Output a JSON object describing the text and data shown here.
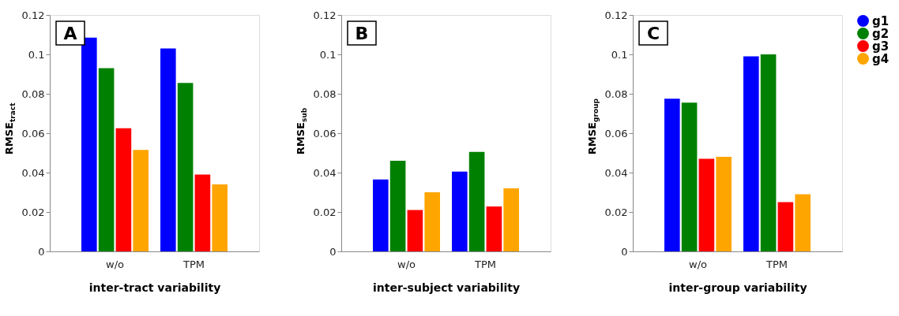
{
  "chart_data": [
    {
      "type": "bar",
      "categories": [
        "w/o",
        "TPM"
      ],
      "xlabel": "inter-tract variability",
      "ylabel": "RMSE$_{tract}$",
      "ylim": [
        0,
        0.12
      ],
      "yticks": [
        0,
        0.02,
        0.04,
        0.06,
        0.08,
        0.1,
        0.12
      ],
      "grid": false,
      "legend": "top right",
      "annotations": [
        "A"
      ],
      "series": [
        {
          "name": "g1",
          "color": "#0000ff",
          "values": [
            0.1085,
            0.103
          ]
        },
        {
          "name": "g2",
          "color": "#008000",
          "values": [
            0.093,
            0.0855
          ]
        },
        {
          "name": "g3",
          "color": "#ff0000",
          "values": [
            0.0625,
            0.039
          ]
        },
        {
          "name": "g4",
          "color": "#ffa500",
          "values": [
            0.0515,
            0.034
          ]
        }
      ]
    },
    {
      "type": "bar",
      "categories": [
        "w/o",
        "TPM"
      ],
      "xlabel": "inter-subject variability",
      "ylabel": "RMSE$_{sub}$",
      "ylim": [
        0,
        0.12
      ],
      "yticks": [
        0,
        0.02,
        0.04,
        0.06,
        0.08,
        0.1,
        0.12
      ],
      "grid": false,
      "legend": "top right",
      "annotations": [
        "B"
      ],
      "series": [
        {
          "name": "g1",
          "color": "#0000ff",
          "values": [
            0.0365,
            0.0405
          ]
        },
        {
          "name": "g2",
          "color": "#008000",
          "values": [
            0.046,
            0.0505
          ]
        },
        {
          "name": "g3",
          "color": "#ff0000",
          "values": [
            0.021,
            0.0228
          ]
        },
        {
          "name": "g4",
          "color": "#ffa500",
          "values": [
            0.03,
            0.032
          ]
        }
      ]
    },
    {
      "type": "bar",
      "categories": [
        "w/o",
        "TPM"
      ],
      "xlabel": "inter-group variability",
      "ylabel": "RMSE$_{group}$",
      "ylim": [
        0,
        0.12
      ],
      "yticks": [
        0,
        0.02,
        0.04,
        0.06,
        0.08,
        0.1,
        0.12
      ],
      "grid": false,
      "legend": "top right",
      "annotations": [
        "C"
      ],
      "series": [
        {
          "name": "g1",
          "color": "#0000ff",
          "values": [
            0.0775,
            0.099
          ]
        },
        {
          "name": "g2",
          "color": "#008000",
          "values": [
            0.0755,
            0.1
          ]
        },
        {
          "name": "g3",
          "color": "#ff0000",
          "values": [
            0.047,
            0.025
          ]
        },
        {
          "name": "g4",
          "color": "#ffa500",
          "values": [
            0.048,
            0.029
          ]
        }
      ]
    }
  ]
}
